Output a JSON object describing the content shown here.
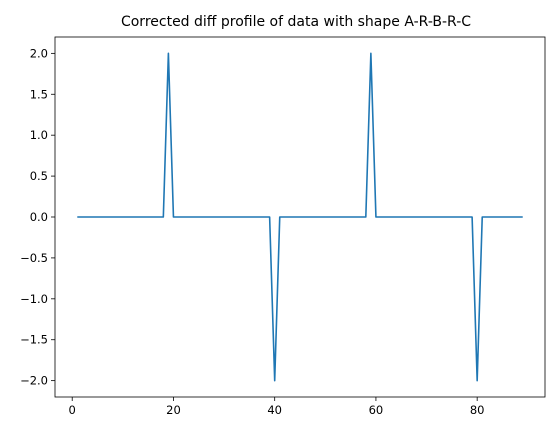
{
  "chart_data": {
    "type": "line",
    "title": "Corrected diff profile of data with shape A-R-B-R-C",
    "xlabel": "",
    "ylabel": "",
    "xlim": [
      -3.4,
      93.4
    ],
    "ylim": [
      -2.2,
      2.2
    ],
    "xticks": [
      0,
      20,
      40,
      60,
      80
    ],
    "yticks": [
      -2.0,
      -1.5,
      -1.0,
      -0.5,
      0.0,
      0.5,
      1.0,
      1.5,
      2.0
    ],
    "xtick_labels": [
      "0",
      "20",
      "40",
      "60",
      "80"
    ],
    "ytick_labels": [
      "−2.0",
      "−1.5",
      "−1.0",
      "−0.5",
      "0.0",
      "0.5",
      "1.0",
      "1.5",
      "2.0"
    ],
    "grid": false,
    "line_color": "#1f77b4",
    "series": [
      {
        "x": [
          1,
          18,
          19,
          20,
          39,
          40,
          41,
          58,
          59,
          60,
          79,
          80,
          81,
          89
        ],
        "values": [
          0,
          0,
          2,
          0,
          0,
          -2,
          0,
          0,
          2,
          0,
          0,
          -2,
          0,
          0
        ]
      }
    ]
  }
}
